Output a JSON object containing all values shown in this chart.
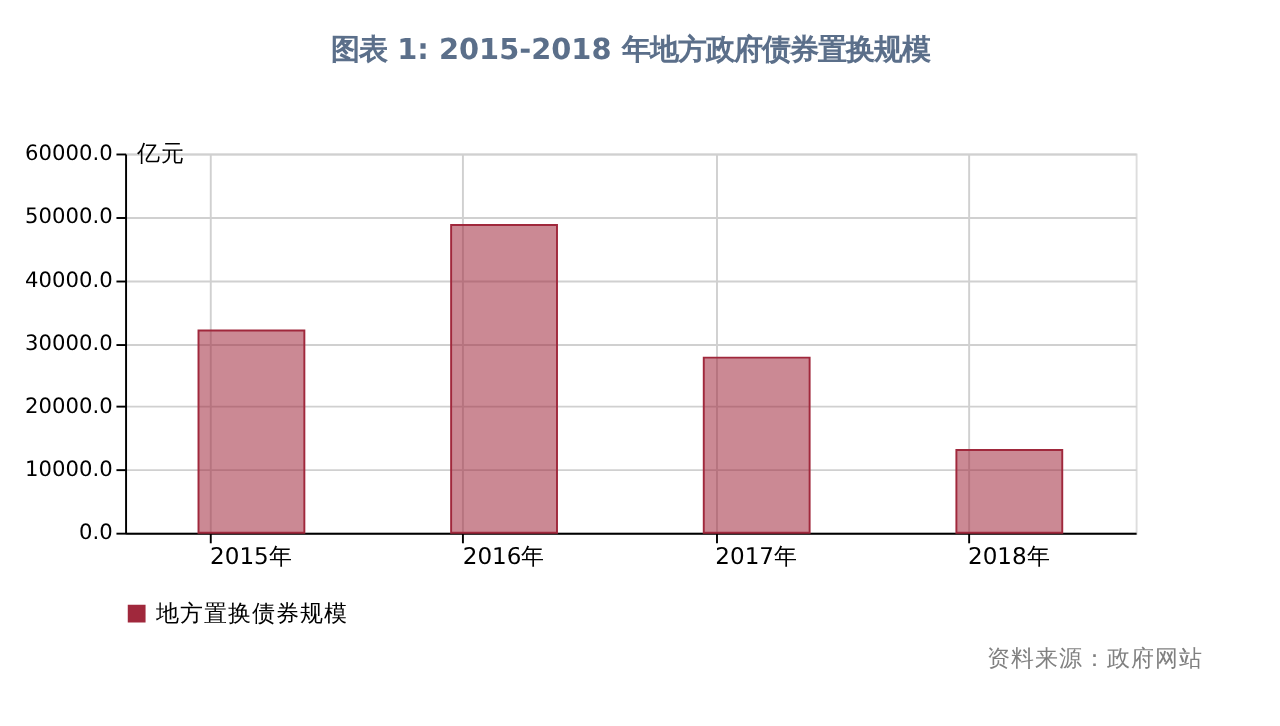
{
  "chart_data": {
    "type": "bar",
    "title": "图表 1:  2015-2018 年地方政府债券置换规模",
    "ylabel": "亿元",
    "categories": [
      "2015年",
      "2016年",
      "2017年",
      "2018年"
    ],
    "series": [
      {
        "name": "地方置换债券规模",
        "color": "#a0283c",
        "values": [
          32000,
          48700,
          27700,
          13100
        ]
      }
    ],
    "ylim": [
      0,
      60000
    ],
    "yticks": [
      {
        "value": 0,
        "label": "0.0"
      },
      {
        "value": 10000,
        "label": "10000.0"
      },
      {
        "value": 20000,
        "label": "20000.0"
      },
      {
        "value": 30000,
        "label": "30000.0"
      },
      {
        "value": 40000,
        "label": "40000.0"
      },
      {
        "value": 50000,
        "label": "50000.0"
      },
      {
        "value": 60000,
        "label": "60000.0"
      }
    ],
    "grid": true,
    "legend": "bottom",
    "annotations": [
      "资料来源：政府网站"
    ]
  }
}
